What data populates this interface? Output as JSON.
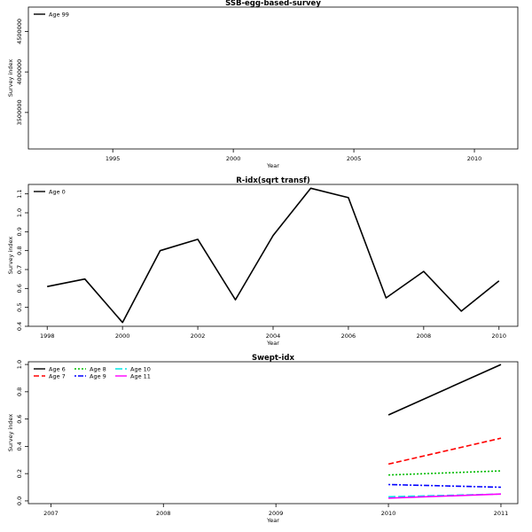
{
  "chart_data": [
    {
      "type": "line",
      "title": "SSB-egg-based-survey",
      "xlabel": "Year",
      "ylabel": "Survey index",
      "xlim": [
        1991.5,
        2011.8
      ],
      "ylim": [
        3050000,
        4800000
      ],
      "xticks": [
        1995,
        2000,
        2005,
        2010
      ],
      "yticks": [
        3500000,
        4000000,
        4500000
      ],
      "legend_position": "top-left",
      "series": [
        {
          "name": "Age 99",
          "color": "#000000",
          "dash": "solid",
          "x": [],
          "y": []
        }
      ]
    },
    {
      "type": "line",
      "title": "R-idx(sqrt transf)",
      "xlabel": "Year",
      "ylabel": "Survey index",
      "xlim": [
        1997.5,
        2010.5
      ],
      "ylim": [
        0.4,
        1.15
      ],
      "xticks": [
        1998,
        2000,
        2002,
        2004,
        2006,
        2008,
        2010
      ],
      "yticks": [
        0.4,
        0.5,
        0.6,
        0.7,
        0.8,
        0.9,
        1.0,
        1.1
      ],
      "legend_position": "top-left",
      "series": [
        {
          "name": "Age 0",
          "color": "#000000",
          "dash": "solid",
          "x": [
            1998,
            1999,
            2000,
            2001,
            2002,
            2003,
            2004,
            2005,
            2006,
            2007,
            2008,
            2009,
            2010
          ],
          "y": [
            0.61,
            0.65,
            0.42,
            0.8,
            0.86,
            0.54,
            0.88,
            1.13,
            1.08,
            0.55,
            0.69,
            0.48,
            0.64
          ]
        }
      ]
    },
    {
      "type": "line",
      "title": "Swept-idx",
      "xlabel": "Year",
      "ylabel": "Survey index",
      "xlim": [
        2006.8,
        2011.15
      ],
      "ylim": [
        -0.02,
        1.02
      ],
      "xticks": [
        2007,
        2008,
        2009,
        2010,
        2011
      ],
      "yticks": [
        0.0,
        0.2,
        0.4,
        0.6,
        0.8,
        1.0
      ],
      "legend_position": "top-left",
      "series": [
        {
          "name": "Age 6",
          "color": "#000000",
          "dash": "solid",
          "x": [
            2010,
            2011
          ],
          "y": [
            0.63,
            1.0
          ]
        },
        {
          "name": "Age 7",
          "color": "#ff0000",
          "dash": "dashed",
          "x": [
            2010,
            2011
          ],
          "y": [
            0.27,
            0.46
          ]
        },
        {
          "name": "Age 8",
          "color": "#00bb00",
          "dash": "dotted",
          "x": [
            2010,
            2011
          ],
          "y": [
            0.19,
            0.22
          ]
        },
        {
          "name": "Age 9",
          "color": "#0000ff",
          "dash": "dotdash",
          "x": [
            2010,
            2011
          ],
          "y": [
            0.12,
            0.1
          ]
        },
        {
          "name": "Age 10",
          "color": "#00e5e5",
          "dash": "longdash",
          "x": [
            2010,
            2011
          ],
          "y": [
            0.03,
            0.05
          ]
        },
        {
          "name": "Age 11",
          "color": "#ff00ff",
          "dash": "solid",
          "x": [
            2010,
            2011
          ],
          "y": [
            0.02,
            0.05
          ]
        }
      ]
    }
  ]
}
